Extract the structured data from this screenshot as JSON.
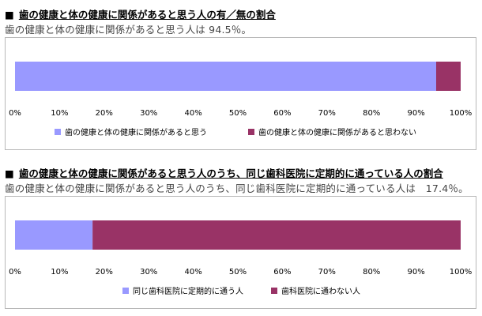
{
  "sections": [
    {
      "heading_mark": "■",
      "heading": "歯の健康と体の健康に関係があると思う人の有／無の割合",
      "subtitle": "歯の健康と体の健康に関係があると思う人は 94.5％。"
    },
    {
      "heading_mark": "■",
      "heading": "歯の健康と体の健康に関係があると思う人のうち、同じ歯科医院に定期的に通っている人の割合",
      "subtitle": "歯の健康と体の健康に関係があると思う人のうち、同じ歯科医院に定期的に通っている人は　17.4％。"
    }
  ],
  "colors": {
    "series_a": "#9999ff",
    "series_b": "#993366",
    "grid_frame": "#b8b8b8"
  },
  "chart_data": [
    {
      "type": "bar",
      "orientation": "horizontal-stacked-percent",
      "xlim": [
        0,
        100
      ],
      "x_ticks": [
        "0%",
        "10%",
        "20%",
        "30%",
        "40%",
        "50%",
        "60%",
        "70%",
        "80%",
        "90%",
        "100%"
      ],
      "series": [
        {
          "name": "歯の健康と体の健康に関係があると思う",
          "values": [
            94.5
          ],
          "color": "#9999ff"
        },
        {
          "name": "歯の健康と体の健康に関係があると思わない",
          "values": [
            5.5
          ],
          "color": "#993366"
        }
      ],
      "legend": "bottom",
      "grid": false
    },
    {
      "type": "bar",
      "orientation": "horizontal-stacked-percent",
      "xlim": [
        0,
        100
      ],
      "x_ticks": [
        "0%",
        "10%",
        "20%",
        "30%",
        "40%",
        "50%",
        "60%",
        "70%",
        "80%",
        "90%",
        "100%"
      ],
      "series": [
        {
          "name": "同じ歯科医院に定期的に通う人",
          "values": [
            17.4
          ],
          "color": "#9999ff"
        },
        {
          "name": "歯科医院に通わない人",
          "values": [
            82.6
          ],
          "color": "#993366"
        }
      ],
      "legend": "bottom",
      "grid": false
    }
  ]
}
